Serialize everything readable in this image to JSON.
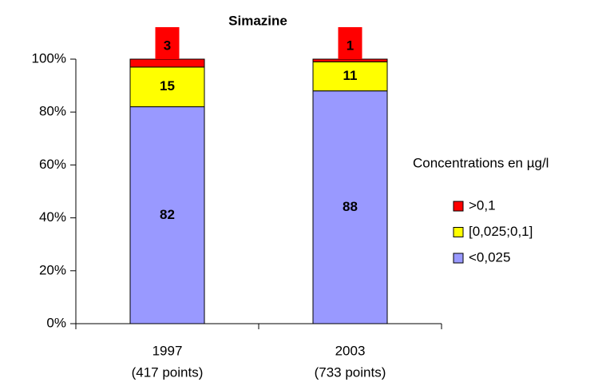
{
  "chart_data": {
    "type": "stacked_bar_percent",
    "title": "Simazine",
    "categories": [
      "1997",
      "2003"
    ],
    "category_sublabels": [
      "(417 points)",
      "(733 points)"
    ],
    "series": [
      {
        "name": "<0,025",
        "color": "#9999ff",
        "values": [
          82,
          88
        ]
      },
      {
        "name": "[0,025;0,1]",
        "color": "#ffff00",
        "values": [
          15,
          11
        ]
      },
      {
        "name": ">0,1",
        "color": "#ff0000",
        "values": [
          3,
          1
        ]
      }
    ],
    "ylim": [
      0,
      100
    ],
    "yticks": [
      {
        "value": 0,
        "label": "0%"
      },
      {
        "value": 20,
        "label": "20%"
      },
      {
        "value": 40,
        "label": "40%"
      },
      {
        "value": 60,
        "label": "60%"
      },
      {
        "value": 80,
        "label": "80%"
      },
      {
        "value": 100,
        "label": "100%"
      }
    ],
    "legend_title": "Concentrations en µg/l",
    "legend_position": "right"
  }
}
